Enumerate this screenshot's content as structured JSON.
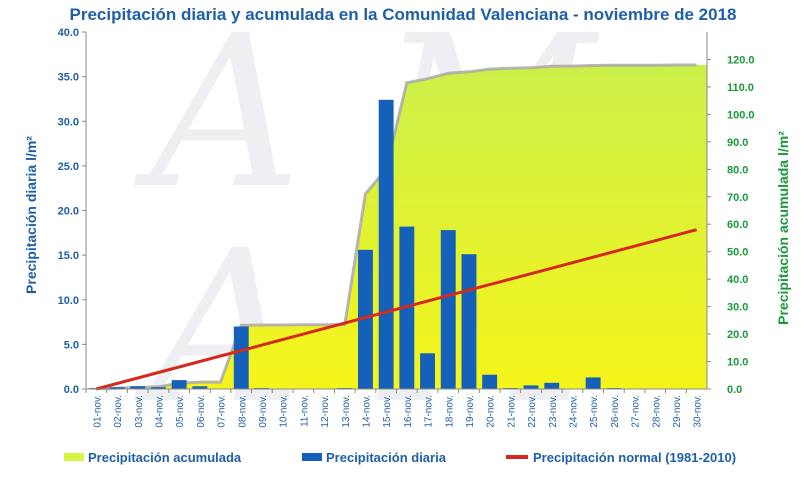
{
  "chart_data": {
    "type": "bar",
    "title": "Precipitación diaria y acumulada en la Comunidad Valenciana - noviembre de 2018",
    "ylabel_left": "Precipitación diaria l/m²",
    "ylabel_right": "Precipitación acumulada l/m²",
    "ylim_left": [
      0,
      40
    ],
    "ylim_right": [
      0,
      130
    ],
    "yticks_left": [
      "0.0",
      "5.0",
      "10.0",
      "15.0",
      "20.0",
      "25.0",
      "30.0",
      "35.0",
      "40.0"
    ],
    "yticks_right": [
      "0.0",
      "10.0",
      "20.0",
      "30.0",
      "40.0",
      "50.0",
      "60.0",
      "70.0",
      "80.0",
      "90.0",
      "100.0",
      "110.0",
      "120.0"
    ],
    "categories": [
      "01-nov.",
      "02-nov.",
      "03-nov.",
      "04-nov.",
      "05-nov.",
      "06-nov.",
      "07-nov.",
      "08-nov.",
      "09-nov.",
      "10-nov.",
      "11-nov.",
      "12-nov.",
      "13-nov.",
      "14-nov.",
      "15-nov.",
      "16-nov.",
      "17-nov.",
      "18-nov.",
      "19-nov.",
      "20-nov.",
      "21-nov.",
      "22-nov.",
      "23-nov.",
      "24-nov.",
      "25-nov.",
      "26-nov.",
      "27-nov.",
      "28-nov.",
      "29-nov.",
      "30-nov."
    ],
    "series": [
      {
        "name": "Precipitación acumulada",
        "type": "area",
        "axis": "right",
        "color": "#d8f542",
        "values": [
          0.1,
          0.3,
          0.6,
          0.8,
          2.1,
          2.5,
          2.5,
          23.2,
          23.3,
          23.3,
          23.4,
          23.4,
          23.5,
          71.0,
          80.0,
          111.5,
          113.0,
          115.0,
          115.5,
          116.5,
          116.8,
          117.0,
          117.5,
          117.6,
          117.8,
          117.9,
          117.9,
          117.9,
          118.0,
          118.0
        ]
      },
      {
        "name": "Precipitación diaria",
        "type": "bar",
        "axis": "left",
        "color": "#1560b8",
        "values": [
          0.1,
          0.2,
          0.3,
          0.2,
          1.0,
          0.3,
          0.0,
          7.0,
          0.1,
          0.0,
          0.0,
          0.0,
          0.1,
          15.6,
          32.4,
          18.2,
          4.0,
          17.8,
          15.1,
          1.6,
          0.1,
          0.4,
          0.7,
          0.0,
          1.3,
          0.1,
          0.0,
          0.0,
          0.0,
          0.0
        ]
      },
      {
        "name": "Precipitación normal (1981-2010)",
        "type": "line",
        "axis": "right",
        "color": "#d42a1e",
        "values": [
          0.0,
          2.0,
          4.0,
          6.0,
          8.0,
          10.0,
          12.0,
          14.0,
          16.0,
          18.0,
          20.0,
          22.0,
          24.0,
          26.0,
          28.0,
          30.0,
          32.0,
          34.0,
          36.0,
          38.0,
          40.0,
          42.0,
          44.0,
          46.0,
          48.0,
          50.0,
          52.0,
          54.0,
          56.0,
          58.0
        ]
      }
    ],
    "legend_position": "bottom",
    "grid": false
  }
}
